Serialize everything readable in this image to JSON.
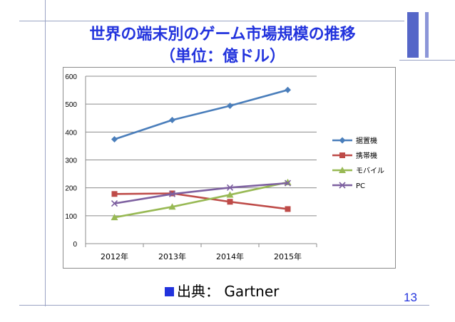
{
  "slide": {
    "title": "世界の端末別のゲーム市場規模の推移",
    "subtitle": "（単位：億ドル）",
    "source_label": "出典：",
    "source_name": "Gartner",
    "page_number": "13"
  },
  "chart_data": {
    "type": "line",
    "categories": [
      "2012年",
      "2013年",
      "2014年",
      "2015年"
    ],
    "ylim": [
      0,
      600
    ],
    "yticks": [
      0,
      100,
      200,
      300,
      400,
      500,
      600
    ],
    "grid": true,
    "legend_position": "right",
    "series": [
      {
        "name": "据置機",
        "values": [
          374,
          443,
          494,
          551
        ],
        "color": "#4a7ebb",
        "marker": "diamond"
      },
      {
        "name": "携帯機",
        "values": [
          178,
          180,
          150,
          124
        ],
        "color": "#be4b48",
        "marker": "square"
      },
      {
        "name": "モバイル",
        "values": [
          94,
          132,
          175,
          220
        ],
        "color": "#98b954",
        "marker": "triangle"
      },
      {
        "name": "PC",
        "values": [
          144,
          178,
          201,
          217
        ],
        "color": "#7d60a0",
        "marker": "x"
      }
    ]
  }
}
